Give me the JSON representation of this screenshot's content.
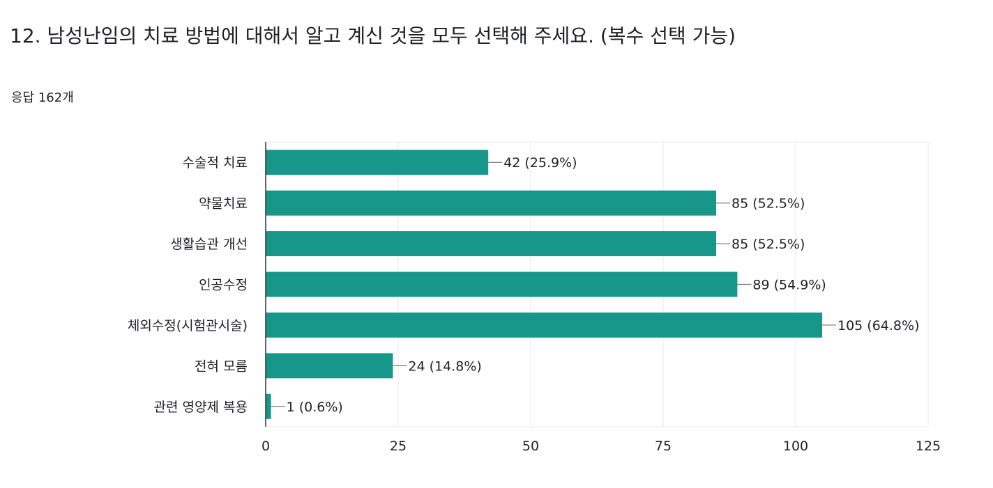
{
  "question": {
    "title": "12. 남성난임의 치료 방법에 대해서 알고 계신 것을 모두 선택해 주세요.   (복수 선택 가능)",
    "response_count": "응답 162개"
  },
  "colors": {
    "bar": "#17968a",
    "grid": "#e8e8e8",
    "axis": "#333333",
    "text": "#202124"
  },
  "chart_data": {
    "type": "bar",
    "orientation": "horizontal",
    "categories": [
      "수술적 치료",
      "약물치료",
      "생활습관 개선",
      "인공수정",
      "체외수정(시험관시술)",
      "전혀 모름",
      "관련 영양제 복용"
    ],
    "values": [
      42,
      85,
      85,
      89,
      105,
      24,
      1
    ],
    "data_labels": [
      "42 (25.9%)",
      "85 (52.5%)",
      "85 (52.5%)",
      "89 (54.9%)",
      "105 (64.8%)",
      "24 (14.8%)",
      "1 (0.6%)"
    ],
    "xlim": [
      0,
      125
    ],
    "xticks": [
      0,
      25,
      50,
      75,
      100,
      125
    ],
    "xtick_labels": [
      "0",
      "25",
      "50",
      "75",
      "100",
      "125"
    ],
    "grid": true,
    "legend": "none"
  }
}
